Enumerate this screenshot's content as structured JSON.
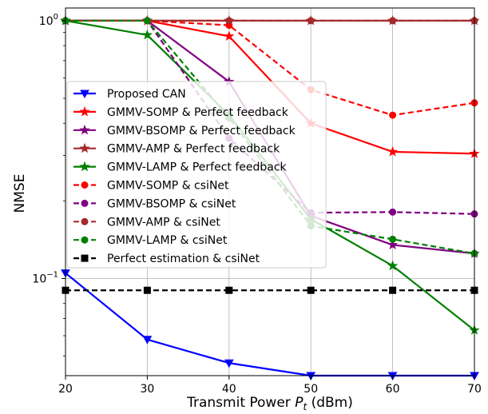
{
  "chart_data": {
    "type": "line",
    "xlabel": "Transmit Power P_t (dBm)",
    "xlabel_parts": {
      "main": "Transmit Power ",
      "var": "P",
      "sub": "t",
      "unit": " (dBm)"
    },
    "ylabel": "NMSE",
    "yscale": "log",
    "xlim": [
      20,
      70
    ],
    "ylim": [
      0.042,
      1.12
    ],
    "grid": true,
    "legend_position": "center-left",
    "x": [
      20,
      30,
      40,
      50,
      60,
      70
    ],
    "x_tick_labels": [
      "20",
      "30",
      "40",
      "50",
      "60",
      "70"
    ],
    "y_tick_labels": [
      {
        "value": 1.0,
        "base": "10",
        "exp": "0"
      },
      {
        "value": 0.1,
        "base": "10",
        "exp": "−1"
      }
    ],
    "series": [
      {
        "name": "Proposed CAN",
        "color": "#0000ff",
        "linestyle": "solid",
        "marker": "triangle-down",
        "values": [
          0.105,
          0.058,
          0.047,
          0.042,
          0.042,
          0.042
        ]
      },
      {
        "name": "GMMV-SOMP & Perfect feedback",
        "color": "#ff0000",
        "linestyle": "solid",
        "marker": "star",
        "values": [
          1.0,
          1.0,
          0.87,
          0.4,
          0.31,
          0.305
        ]
      },
      {
        "name": "GMMV-BSOMP & Perfect feedback",
        "color": "#800080",
        "linestyle": "solid",
        "marker": "star",
        "values": [
          1.0,
          1.0,
          0.58,
          0.175,
          0.135,
          0.125
        ]
      },
      {
        "name": "GMMV-AMP & Perfect feedback",
        "color": "#a52a2a",
        "linestyle": "solid",
        "marker": "star",
        "values": [
          1.0,
          1.0,
          1.0,
          1.0,
          1.0,
          1.0
        ]
      },
      {
        "name": "GMMV-LAMP & Perfect feedback",
        "color": "#008000",
        "linestyle": "solid",
        "marker": "star",
        "values": [
          1.0,
          0.88,
          0.43,
          0.17,
          0.112,
          0.063
        ]
      },
      {
        "name": "GMMV-SOMP & csiNet",
        "color": "#ff0000",
        "linestyle": "dashed",
        "marker": "circle",
        "values": [
          1.0,
          1.0,
          0.96,
          0.54,
          0.43,
          0.48
        ]
      },
      {
        "name": "GMMV-BSOMP & csiNet",
        "color": "#800080",
        "linestyle": "dashed",
        "marker": "circle",
        "values": [
          1.0,
          1.0,
          0.35,
          0.18,
          0.181,
          0.178
        ]
      },
      {
        "name": "GMMV-AMP & csiNet",
        "color": "#a52a2a",
        "linestyle": "dashed",
        "marker": "circle",
        "values": [
          1.0,
          1.0,
          1.0,
          1.0,
          1.0,
          1.0
        ]
      },
      {
        "name": "GMMV-LAMP & csiNet",
        "color": "#008000",
        "linestyle": "dashed",
        "marker": "circle",
        "values": [
          1.0,
          1.0,
          0.42,
          0.16,
          0.142,
          0.125
        ]
      },
      {
        "name": "Perfect estimation & csiNet",
        "color": "#000000",
        "linestyle": "dashed",
        "marker": "square",
        "values": [
          0.09,
          0.09,
          0.09,
          0.09,
          0.09,
          0.09
        ]
      }
    ]
  }
}
